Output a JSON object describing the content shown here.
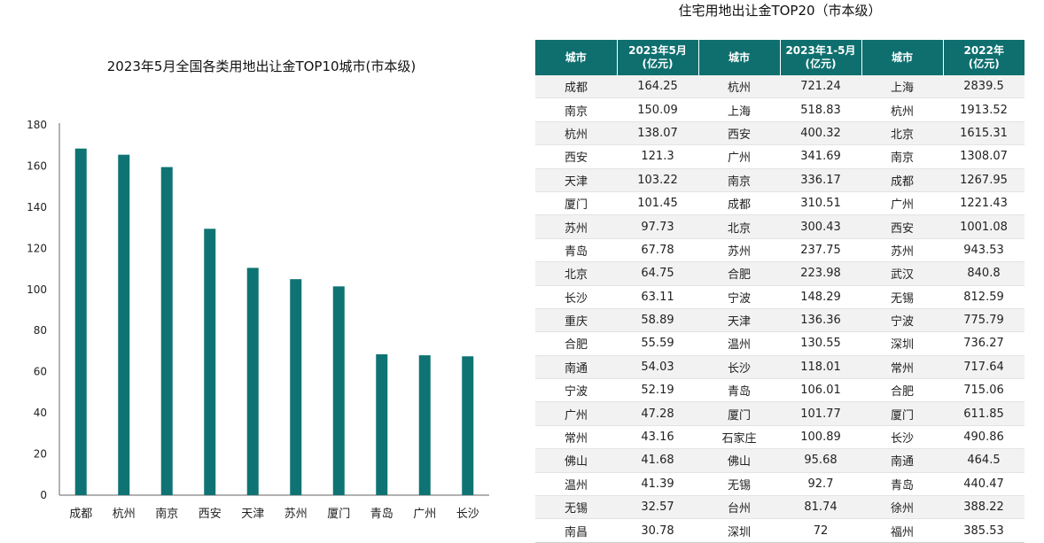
{
  "chart_data": {
    "type": "bar",
    "title": "2023年5月全国各类用地出让金TOP10城市(市本级)",
    "categories": [
      "成都",
      "杭州",
      "南京",
      "西安",
      "天津",
      "苏州",
      "厦门",
      "青岛",
      "广州",
      "长沙"
    ],
    "values": [
      168.5,
      165.5,
      159.5,
      129.5,
      110.5,
      105,
      101.5,
      68.5,
      68,
      67.5
    ],
    "yticks": [
      "0",
      "20",
      "40",
      "60",
      "80",
      "100",
      "120",
      "140",
      "160",
      "180"
    ],
    "ylim": [
      0,
      180
    ],
    "grid": false,
    "bar_color": "#0f7373"
  },
  "table": {
    "title": "住宅用地出让金TOP20（市本级）",
    "headers": [
      {
        "line1": "城市",
        "line2": ""
      },
      {
        "line1": "2023年5月",
        "line2": "(亿元)"
      },
      {
        "line1": "城市",
        "line2": ""
      },
      {
        "line1": "2023年1-5月",
        "line2": "(亿元)"
      },
      {
        "line1": "城市",
        "line2": ""
      },
      {
        "line1": "2022年",
        "line2": "(亿元)"
      }
    ],
    "header_color": "#0f6f6f",
    "rows": [
      [
        "成都",
        "164.25",
        "杭州",
        "721.24",
        "上海",
        "2839.5"
      ],
      [
        "南京",
        "150.09",
        "上海",
        "518.83",
        "杭州",
        "1913.52"
      ],
      [
        "杭州",
        "138.07",
        "西安",
        "400.32",
        "北京",
        "1615.31"
      ],
      [
        "西安",
        "121.3",
        "广州",
        "341.69",
        "南京",
        "1308.07"
      ],
      [
        "天津",
        "103.22",
        "南京",
        "336.17",
        "成都",
        "1267.95"
      ],
      [
        "厦门",
        "101.45",
        "成都",
        "310.51",
        "广州",
        "1221.43"
      ],
      [
        "苏州",
        "97.73",
        "北京",
        "300.43",
        "西安",
        "1001.08"
      ],
      [
        "青岛",
        "67.78",
        "苏州",
        "237.75",
        "苏州",
        "943.53"
      ],
      [
        "北京",
        "64.75",
        "合肥",
        "223.98",
        "武汉",
        "840.8"
      ],
      [
        "长沙",
        "63.11",
        "宁波",
        "148.29",
        "无锡",
        "812.59"
      ],
      [
        "重庆",
        "58.89",
        "天津",
        "136.36",
        "宁波",
        "775.79"
      ],
      [
        "合肥",
        "55.59",
        "温州",
        "130.55",
        "深圳",
        "736.27"
      ],
      [
        "南通",
        "54.03",
        "长沙",
        "118.01",
        "常州",
        "717.64"
      ],
      [
        "宁波",
        "52.19",
        "青岛",
        "106.01",
        "合肥",
        "715.06"
      ],
      [
        "广州",
        "47.28",
        "厦门",
        "101.77",
        "厦门",
        "611.85"
      ],
      [
        "常州",
        "43.16",
        "石家庄",
        "100.89",
        "长沙",
        "490.86"
      ],
      [
        "佛山",
        "41.68",
        "佛山",
        "95.68",
        "南通",
        "464.5"
      ],
      [
        "温州",
        "41.39",
        "无锡",
        "92.7",
        "青岛",
        "440.47"
      ],
      [
        "无锡",
        "32.57",
        "台州",
        "81.74",
        "徐州",
        "388.22"
      ],
      [
        "南昌",
        "30.78",
        "深圳",
        "72",
        "福州",
        "385.53"
      ]
    ]
  }
}
